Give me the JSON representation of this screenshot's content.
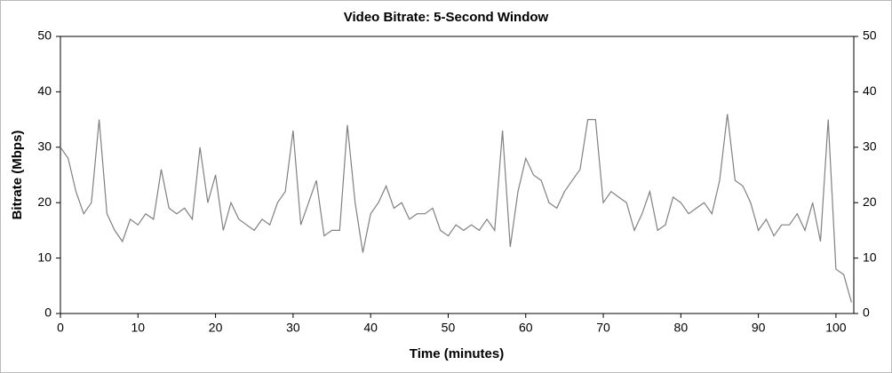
{
  "chart_data": {
    "type": "line",
    "title": "Video Bitrate: 5-Second Window",
    "x_label": "Time (minutes)",
    "y_label": "Bitrate (Mbps)",
    "xlim": [
      0,
      102.3
    ],
    "xticks": [
      0,
      10,
      20,
      30,
      40,
      50,
      60,
      70,
      80,
      90,
      100
    ],
    "ylim": [
      0,
      50
    ],
    "yticks": [
      0,
      10,
      20,
      30,
      40,
      50
    ],
    "series": [
      {
        "name": "Video Bitrate",
        "color": "#808080",
        "x": [
          0,
          1,
          2,
          3,
          4,
          5,
          6,
          7,
          8,
          9,
          10,
          11,
          12,
          13,
          14,
          15,
          16,
          17,
          18,
          19,
          20,
          21,
          22,
          23,
          24,
          25,
          26,
          27,
          28,
          29,
          30,
          31,
          32,
          33,
          34,
          35,
          36,
          37,
          38,
          39,
          40,
          41,
          42,
          43,
          44,
          45,
          46,
          47,
          48,
          49,
          50,
          51,
          52,
          53,
          54,
          55,
          56,
          57,
          58,
          59,
          60,
          61,
          62,
          63,
          64,
          65,
          66,
          67,
          68,
          69,
          70,
          71,
          72,
          73,
          74,
          75,
          76,
          77,
          78,
          79,
          80,
          81,
          82,
          83,
          84,
          85,
          86,
          87,
          88,
          89,
          90,
          91,
          92,
          93,
          94,
          95,
          96,
          97,
          98,
          99,
          100,
          101,
          102
        ],
        "values": [
          30,
          28,
          22,
          18,
          20,
          35,
          18,
          15,
          13,
          17,
          16,
          18,
          17,
          26,
          19,
          18,
          19,
          17,
          30,
          20,
          25,
          15,
          20,
          17,
          16,
          15,
          17,
          16,
          20,
          22,
          33,
          16,
          20,
          24,
          14,
          15,
          15,
          34,
          20,
          11,
          18,
          20,
          23,
          19,
          20,
          17,
          18,
          18,
          19,
          15,
          14,
          16,
          15,
          16,
          15,
          17,
          15,
          33,
          12,
          22,
          28,
          25,
          24,
          20,
          19,
          22,
          24,
          26,
          35,
          35,
          20,
          22,
          21,
          20,
          15,
          18,
          22,
          15,
          16,
          21,
          20,
          18,
          19,
          20,
          18,
          24,
          36,
          24,
          23,
          20,
          15,
          17,
          14,
          16,
          16,
          18,
          15,
          20,
          13,
          35,
          8,
          7,
          2
        ]
      }
    ]
  }
}
